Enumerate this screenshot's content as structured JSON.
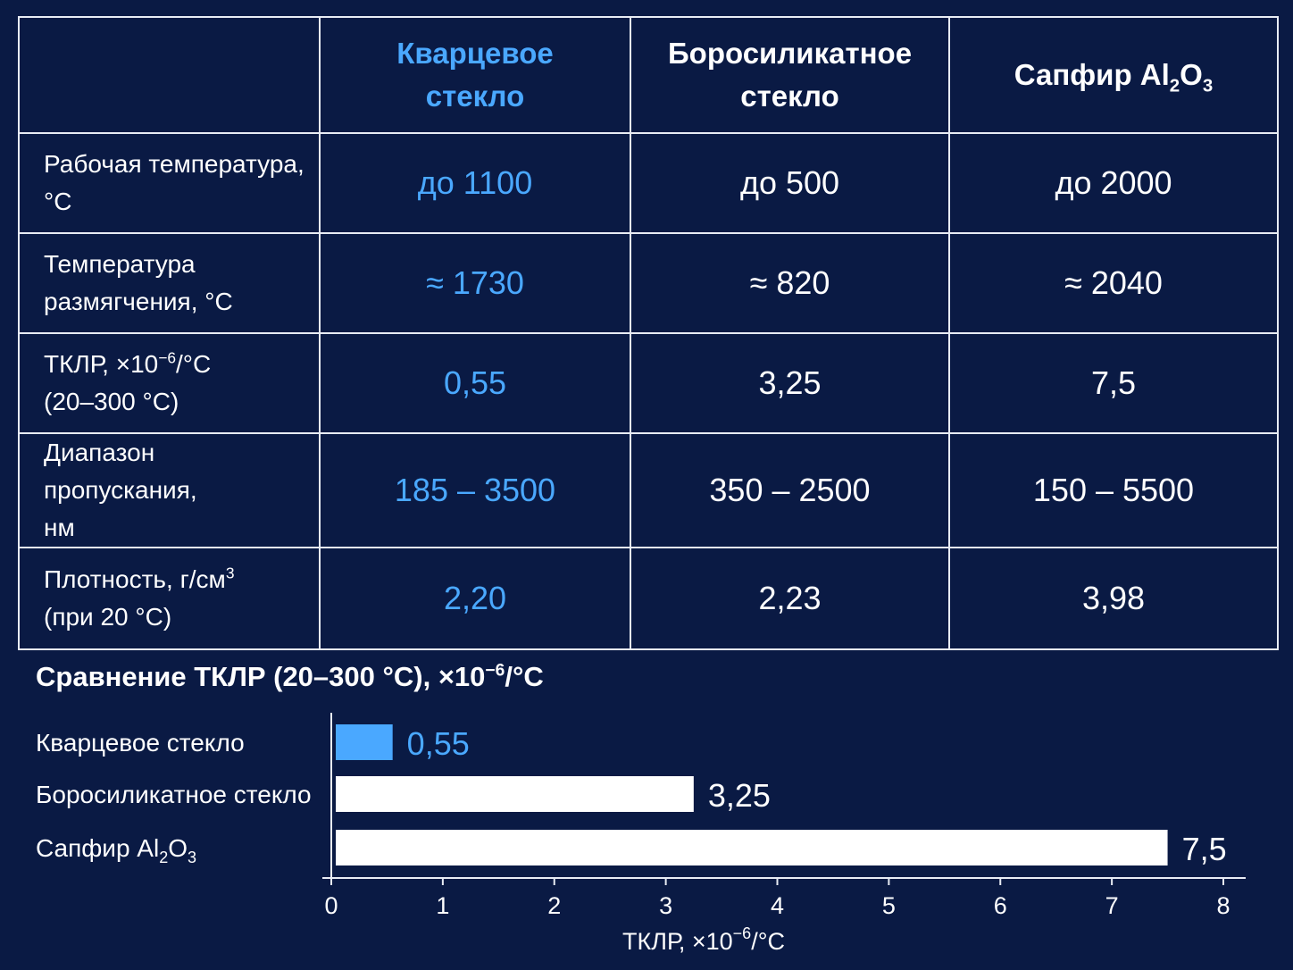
{
  "table": {
    "columns": [
      {
        "line1": "Кварцевое",
        "line2": "стекло",
        "highlight": true
      },
      {
        "line1": "Боросиликатное",
        "line2": "стекло",
        "highlight": false
      },
      {
        "main": "Сапфир Al",
        "sub1": "2",
        "mid": "O",
        "sub2": "3",
        "highlight": false
      }
    ],
    "rows": [
      {
        "label_line1": "Рабочая температура,",
        "label_line2": "°C",
        "values": [
          "до 1100",
          "до 500",
          "до 2000"
        ]
      },
      {
        "label_line1": "Температура",
        "label_line2": "размягчения, °C",
        "values": [
          "≈ 1730",
          "≈ 820",
          "≈ 2040"
        ]
      },
      {
        "label_line1_main": "ТКЛР, ×10",
        "label_line1_sup": "−6",
        "label_line1_tail": "/°C",
        "label_line2": "(20–300 °C)",
        "values": [
          "0,55",
          "3,25",
          "7,5"
        ]
      },
      {
        "label_line1": "Диапазон пропускания,",
        "label_line2": "нм",
        "values": [
          "185 – 3500",
          "350 – 2500",
          "150 – 5500"
        ]
      },
      {
        "label_line1_main": "Плотность, г/см",
        "label_line1_sup": "3",
        "label_line1_tail": "",
        "label_line2": "(при 20 °C)",
        "values": [
          "2,20",
          "2,23",
          "3,98"
        ]
      }
    ]
  },
  "chart_data": {
    "type": "bar",
    "orientation": "horizontal",
    "title_main": "Сравнение ТКЛР (20–300 °C), ×10",
    "title_sup": "−6",
    "title_tail": "/°C",
    "xlabel_main": "ТКЛР, ×10",
    "xlabel_sup": "−6",
    "xlabel_tail": "/°C",
    "xlim": [
      0,
      8
    ],
    "xticks": [
      0,
      1,
      2,
      3,
      4,
      5,
      6,
      7,
      8
    ],
    "grid": false,
    "categories": [
      {
        "main": "Кварцевое стекло",
        "sub1": "",
        "mid": "",
        "sub2": ""
      },
      {
        "main": "Боросиликатное стекло",
        "sub1": "",
        "mid": "",
        "sub2": ""
      },
      {
        "main": "Сапфир Al",
        "sub1": "2",
        "mid": "O",
        "sub2": "3"
      }
    ],
    "values": [
      0.55,
      3.25,
      7.5
    ],
    "value_labels": [
      "0,55",
      "3,25",
      "7,5"
    ],
    "bar_colors": [
      "#4aa8ff",
      "#ffffff",
      "#ffffff"
    ],
    "label_colors": [
      "#4aa8ff",
      "#ffffff",
      "#ffffff"
    ]
  },
  "colors": {
    "background": "#0a1a44",
    "accent": "#4aa8ff",
    "text": "#ffffff",
    "grid_line": "#e8ecf4"
  }
}
